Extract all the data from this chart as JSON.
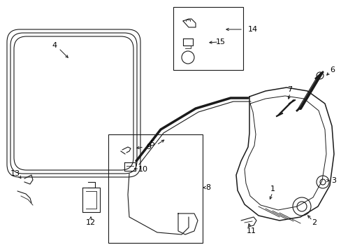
{
  "bg_color": "#ffffff",
  "line_color": "#1a1a1a",
  "label_color": "#000000",
  "fig_w": 4.89,
  "fig_h": 3.6,
  "dpi": 100
}
